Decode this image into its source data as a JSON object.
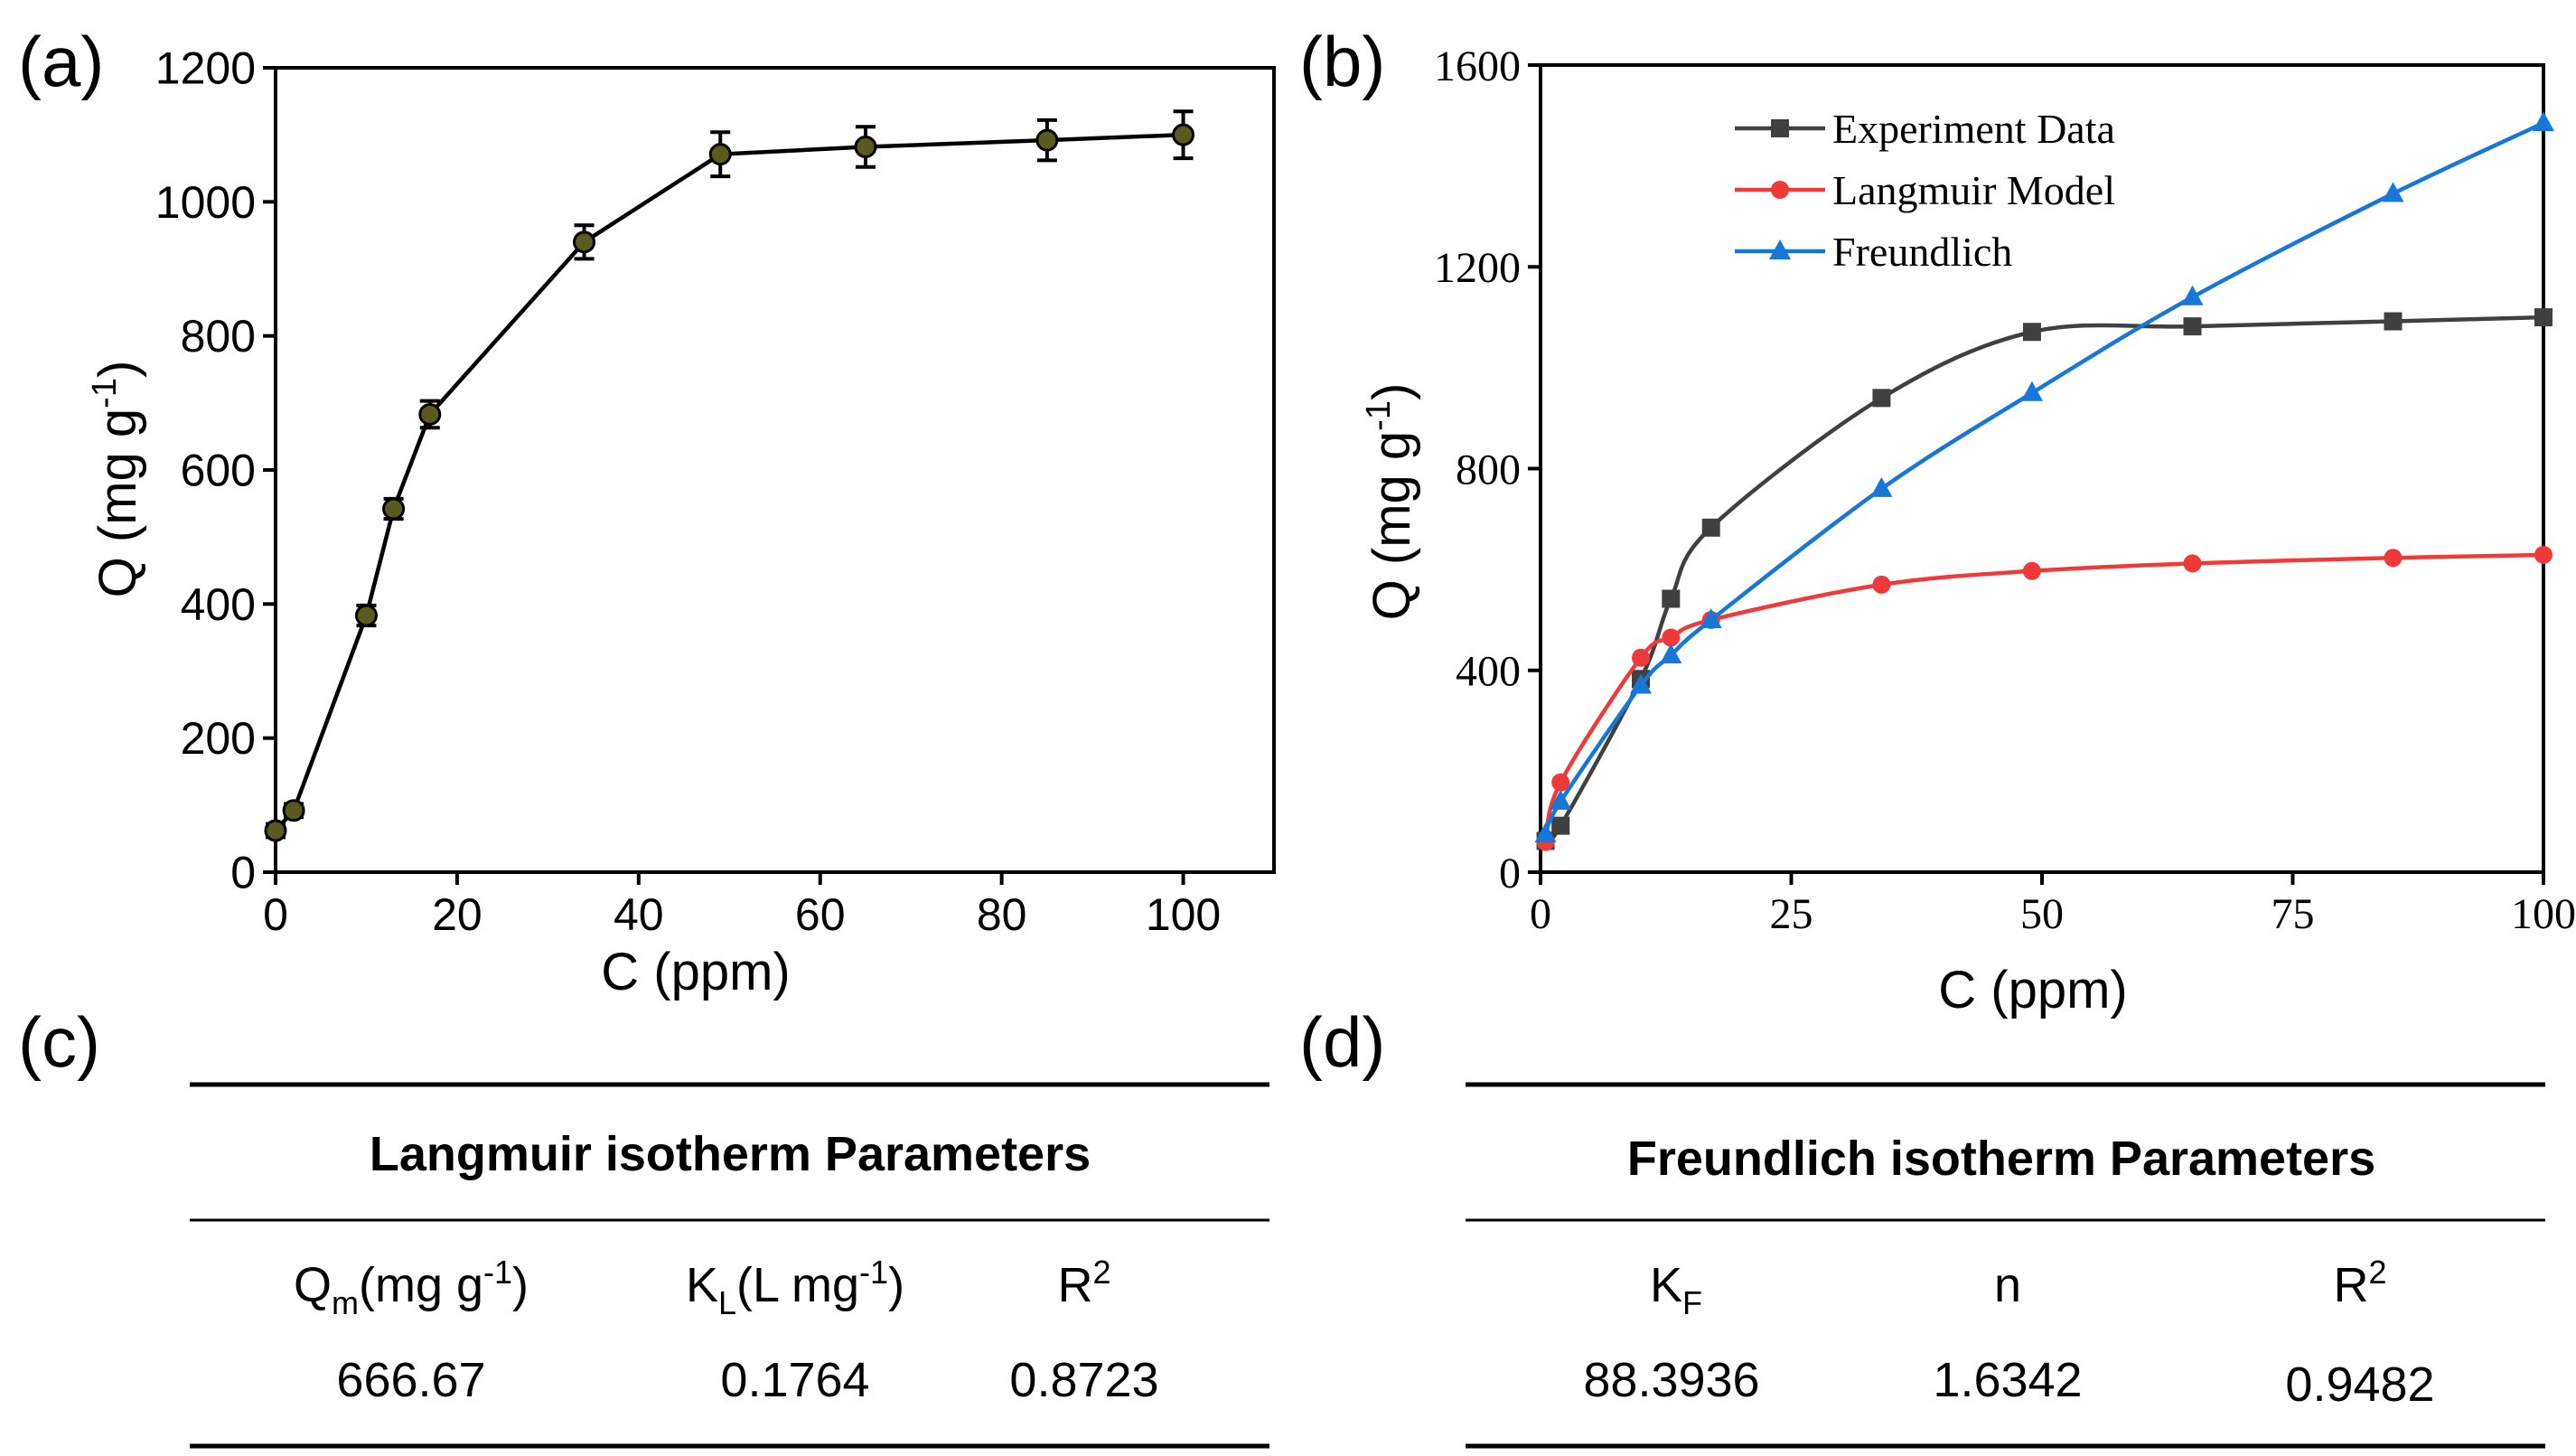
{
  "chart_data": [
    {
      "panel": "(a)",
      "type": "scatter",
      "xlabel": "C (ppm)",
      "ylabel_main": "Q (mg g",
      "ylabel_sup": "-1",
      "ylabel_close": ")",
      "xlim": [
        0,
        110
      ],
      "ylim": [
        0,
        1200
      ],
      "xticks": [
        0,
        20,
        40,
        60,
        80,
        100
      ],
      "yticks": [
        0,
        200,
        400,
        600,
        800,
        1000,
        1200
      ],
      "colors": {
        "line": "#000000",
        "marker": "#5a5a1e"
      },
      "series": [
        {
          "name": "Q",
          "x": [
            0,
            2,
            10,
            13,
            17,
            34,
            49,
            65,
            85,
            100
          ],
          "y": [
            62,
            92,
            383,
            542,
            683,
            940,
            1071,
            1082,
            1092,
            1100
          ],
          "err": [
            10,
            10,
            15,
            15,
            20,
            25,
            33,
            30,
            30,
            35
          ]
        }
      ]
    },
    {
      "panel": "(b)",
      "type": "line",
      "xlabel": "C (ppm)",
      "ylabel_main": "Q (mg g",
      "ylabel_sup": "-1",
      "ylabel_close": ")",
      "xlim": [
        0,
        100
      ],
      "ylim": [
        0,
        1600
      ],
      "xticks": [
        0,
        25,
        50,
        75,
        100
      ],
      "yticks": [
        0,
        400,
        800,
        1200,
        1600
      ],
      "legend_position": "top-left",
      "series": [
        {
          "name": "Experiment Data",
          "color": "#404040",
          "marker": "square",
          "x": [
            0.5,
            2,
            10,
            13,
            17,
            34,
            49,
            65,
            85,
            100
          ],
          "y": [
            62,
            92,
            383,
            542,
            683,
            940,
            1071,
            1082,
            1092,
            1100
          ]
        },
        {
          "name": "Langmuir Model",
          "color": "#f03a3a",
          "marker": "circle",
          "x": [
            0.5,
            2,
            10,
            13,
            17,
            34,
            49,
            65,
            85,
            100
          ],
          "y": [
            60,
            178,
            425,
            465,
            500,
            570,
            597,
            612,
            623,
            629
          ]
        },
        {
          "name": "Freundlich",
          "color": "#1677d8",
          "marker": "triangle",
          "x": [
            0.5,
            2,
            10,
            13,
            17,
            34,
            49,
            65,
            85,
            100
          ],
          "y": [
            75,
            140,
            370,
            430,
            500,
            760,
            950,
            1140,
            1345,
            1485
          ]
        }
      ]
    }
  ],
  "panel_labels": {
    "a": "(a)",
    "b": "(b)",
    "c": "(c)",
    "d": "(d)"
  },
  "table_c": {
    "title": "Langmuir isotherm Parameters",
    "headers": [
      {
        "main": "Q",
        "sub": "m",
        "rest": "(mg g",
        "sup": "-1",
        "close": ")"
      },
      {
        "main": "K",
        "sub": "L",
        "rest": "(L mg",
        "sup": "-1",
        "close": ")"
      },
      {
        "main": "R",
        "sup": "2"
      }
    ],
    "values": [
      "666.67",
      "0.1764",
      "0.8723"
    ]
  },
  "table_d": {
    "title": "Freundlich isotherm Parameters",
    "headers": [
      {
        "main": "K",
        "sub": "F"
      },
      {
        "main": "n"
      },
      {
        "main": "R",
        "sup": "2"
      }
    ],
    "values": [
      "88.3936",
      "1.6342",
      "0.9482"
    ]
  }
}
